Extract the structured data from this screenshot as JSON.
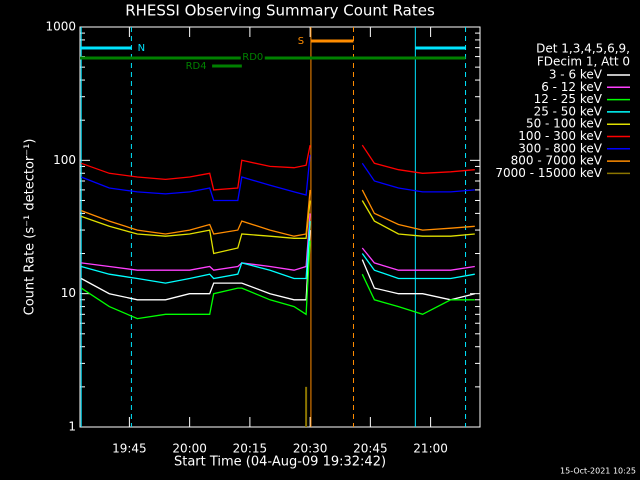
{
  "chart_data": {
    "type": "line",
    "title": "RHESSI Observing Summary Count Rates",
    "x_label": "Start Time (04-Aug-09 19:32:42)",
    "y_label": "Count Rate (s⁻¹ detector⁻¹)",
    "footer": "15-Oct-2021 10:25",
    "legend_title": [
      "Det 1,3,4,5,6,9,",
      "FDecim 1, Att 0"
    ],
    "log_y": true,
    "xlim": [
      1172.7,
      1272.3
    ],
    "ylim": [
      1,
      1000
    ],
    "xticks": [
      {
        "value": 1185,
        "label": "19:45"
      },
      {
        "value": 1200,
        "label": "20:00"
      },
      {
        "value": 1215,
        "label": "20:15"
      },
      {
        "value": 1230,
        "label": "20:30"
      },
      {
        "value": 1245,
        "label": "20:45"
      },
      {
        "value": 1260,
        "label": "21:00"
      }
    ],
    "yticks": [
      1,
      10,
      100,
      1000
    ],
    "x": [
      1173,
      1180,
      1187,
      1194,
      1200,
      1205,
      1206,
      1212,
      1213,
      1220,
      1226,
      1229,
      1230,
      1236,
      1243,
      1246,
      1252,
      1258,
      1265,
      1271
    ],
    "series": [
      {
        "name": "3 - 6 keV",
        "color": "#ffffff",
        "values": [
          13,
          10,
          9,
          9,
          10,
          10,
          12,
          12,
          12,
          10,
          9,
          9,
          30,
          null,
          18,
          11,
          10,
          10,
          9,
          10
        ]
      },
      {
        "name": "6 - 12 keV",
        "color": "#ff40ff",
        "values": [
          17,
          16,
          15,
          15,
          15,
          16,
          15,
          16,
          17,
          16,
          15,
          16,
          40,
          null,
          22,
          17,
          15,
          15,
          15,
          16
        ]
      },
      {
        "name": "12 - 25 keV",
        "color": "#00ff00",
        "values": [
          11,
          8,
          6.5,
          7,
          7,
          7,
          10,
          11,
          11,
          9,
          8,
          7,
          25,
          null,
          14,
          9,
          8,
          7,
          9,
          9
        ]
      },
      {
        "name": "25 - 50 keV",
        "color": "#00ffff",
        "values": [
          16,
          14,
          13,
          12,
          13,
          14,
          13,
          14,
          17,
          15,
          13,
          13,
          35,
          null,
          20,
          15,
          13,
          13,
          13,
          14
        ]
      },
      {
        "name": "50 - 100 keV",
        "color": "#e0e000",
        "values": [
          38,
          32,
          28,
          27,
          28,
          30,
          20,
          22,
          28,
          27,
          26,
          26,
          50,
          null,
          50,
          35,
          28,
          27,
          27,
          28
        ]
      },
      {
        "name": "100 - 300 keV",
        "color": "#ff0000",
        "values": [
          95,
          80,
          75,
          72,
          75,
          80,
          60,
          62,
          100,
          90,
          88,
          92,
          130,
          null,
          130,
          95,
          85,
          80,
          82,
          85
        ]
      },
      {
        "name": "300 - 800 keV",
        "color": "#0000ff",
        "values": [
          75,
          62,
          58,
          56,
          58,
          62,
          50,
          50,
          75,
          65,
          58,
          55,
          110,
          null,
          95,
          70,
          62,
          58,
          58,
          60
        ]
      },
      {
        "name": "800 - 7000 keV",
        "color": "#ff8c00",
        "values": [
          42,
          35,
          30,
          28,
          30,
          33,
          28,
          30,
          35,
          30,
          27,
          28,
          60,
          null,
          60,
          40,
          33,
          30,
          31,
          32
        ]
      },
      {
        "name": "7000 - 15000 keV",
        "color": "#8b7500",
        "values": [
          null,
          null,
          null,
          null,
          null,
          null,
          null,
          null,
          null,
          null,
          null,
          2,
          null,
          null,
          null,
          null,
          null,
          null,
          null,
          null
        ]
      }
    ],
    "flags": [
      {
        "label": "N",
        "color": "#00e5ff",
        "spans": [
          [
            1172.7,
            1185.5
          ],
          [
            1256.2,
            1268.7
          ]
        ]
      },
      {
        "label": "S",
        "color": "#ff8c00",
        "spans": [
          [
            1230.2,
            1240.8
          ]
        ]
      },
      {
        "label": "RD0",
        "color": "#008000",
        "spans": [
          [
            1172.7,
            1268.7
          ]
        ]
      },
      {
        "label": "RD4",
        "color": "#008000",
        "spans": [
          [
            1205.6,
            1213
          ]
        ]
      }
    ],
    "vlines": [
      {
        "x": 1173,
        "color": "#00e5ff",
        "dashed": false
      },
      {
        "x": 1185.5,
        "color": "#00e5ff",
        "dashed": true
      },
      {
        "x": 1256.2,
        "color": "#00e5ff",
        "dashed": false
      },
      {
        "x": 1268.7,
        "color": "#00e5ff",
        "dashed": true
      },
      {
        "x": 1230.2,
        "color": "#ff8c00",
        "dashed": false
      },
      {
        "x": 1240.8,
        "color": "#ff8c00",
        "dashed": true
      }
    ]
  }
}
